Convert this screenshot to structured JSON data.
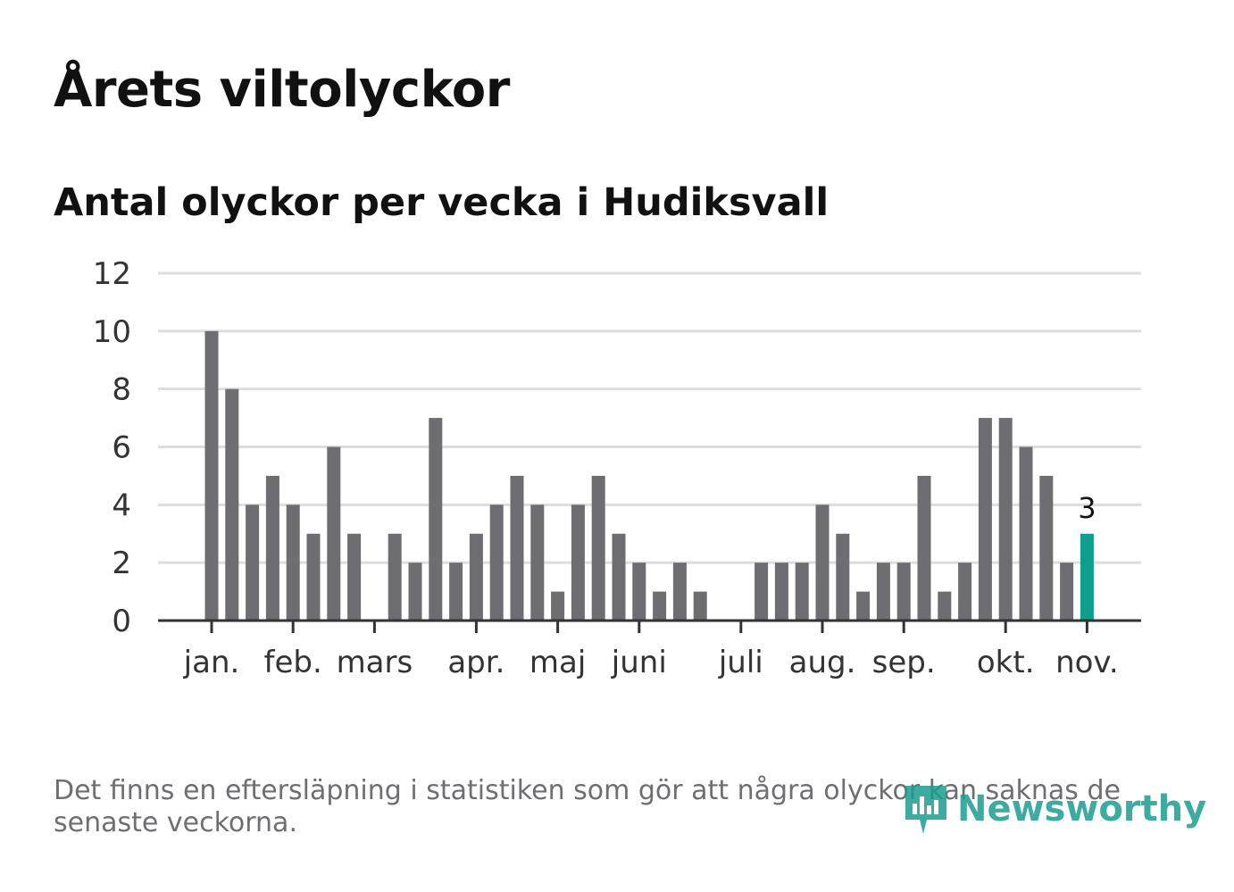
{
  "header": {
    "title": "Årets viltolyckor",
    "subtitle": "Antal olyckor per vecka i Hudiksvall"
  },
  "footer": {
    "note": "Det finns en eftersläpning i statistiken som gör att några olyckor kan saknas de senaste veckorna.",
    "logo_text": "Newsworthy"
  },
  "colors": {
    "bar": "#6e6d72",
    "highlight": "#0e9f8e",
    "grid": "#dddddd",
    "axis": "#333333",
    "logo": "#1a9e8f"
  },
  "chart_data": {
    "type": "bar",
    "title": "Antal olyckor per vecka i Hudiksvall",
    "xlabel": "",
    "ylabel": "",
    "ylim": [
      0,
      12
    ],
    "yticks": [
      0,
      2,
      4,
      6,
      8,
      10,
      12
    ],
    "grid": true,
    "x_first_week": 1,
    "x_last_week": 44,
    "values": [
      10,
      8,
      4,
      5,
      4,
      3,
      6,
      3,
      0,
      3,
      2,
      7,
      2,
      3,
      4,
      5,
      4,
      1,
      4,
      5,
      3,
      2,
      1,
      2,
      1,
      0,
      0,
      2,
      2,
      2,
      4,
      3,
      1,
      2,
      2,
      5,
      1,
      2,
      7,
      7,
      6,
      5,
      2,
      3
    ],
    "highlight_index": 43,
    "highlight_label": "3",
    "month_labels": [
      "jan.",
      "feb.",
      "mars",
      "apr.",
      "maj",
      "juni",
      "juli",
      "aug.",
      "sep.",
      "okt.",
      "nov."
    ],
    "month_weeks": [
      1,
      5,
      9,
      14,
      18,
      22,
      27,
      31,
      35,
      40,
      44
    ]
  }
}
